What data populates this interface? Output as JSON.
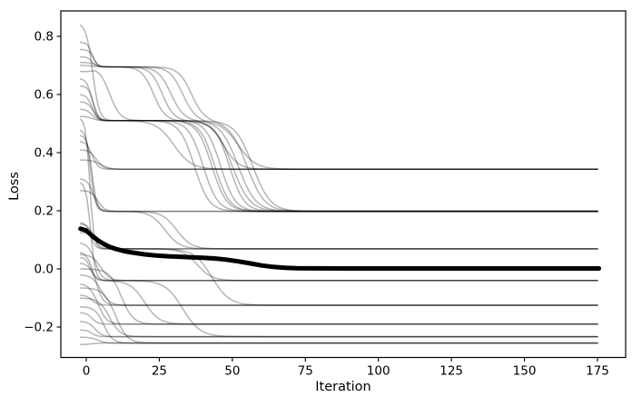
{
  "figure": {
    "background": "#ffffff"
  },
  "chart_data": {
    "type": "line",
    "title": "",
    "xlabel": "Iteration",
    "ylabel": "Loss",
    "xlim": [
      -8.7,
      184.6
    ],
    "ylim": [
      -0.305,
      0.8875
    ],
    "grid": false,
    "legend": null,
    "xticks": [
      0,
      25,
      50,
      75,
      100,
      125,
      150,
      175
    ],
    "xtick_labels": [
      "0",
      "25",
      "50",
      "75",
      "100",
      "125",
      "150",
      "175"
    ],
    "yticks": [
      -0.2,
      0.0,
      0.2,
      0.4,
      0.6,
      0.8
    ],
    "ytick_labels": [
      "−0.2",
      "0.0",
      "0.2",
      "0.4",
      "0.6",
      "0.8"
    ],
    "t_range": [
      -2,
      175.5
    ],
    "plateau_levels": [
      0.695,
      0.51,
      0.343,
      0.198,
      0.069,
      -0.04,
      -0.125,
      -0.19,
      -0.233,
      -0.255
    ],
    "gray_style": {
      "color": "rgba(0,0,0,0.29)",
      "width": 1.5
    },
    "mean_style": {
      "color": "#000000",
      "width": 5
    },
    "mean_curve": [
      [
        -2,
        0.138
      ],
      [
        0,
        0.132
      ],
      [
        2,
        0.114
      ],
      [
        4,
        0.098
      ],
      [
        6,
        0.086
      ],
      [
        8,
        0.076
      ],
      [
        10,
        0.069
      ],
      [
        13,
        0.061
      ],
      [
        16,
        0.056
      ],
      [
        20,
        0.05
      ],
      [
        24,
        0.046
      ],
      [
        28,
        0.0435
      ],
      [
        32,
        0.042
      ],
      [
        36,
        0.04
      ],
      [
        40,
        0.038
      ],
      [
        44,
        0.036
      ],
      [
        48,
        0.032
      ],
      [
        52,
        0.026
      ],
      [
        56,
        0.019
      ],
      [
        60,
        0.012
      ],
      [
        64,
        0.007
      ],
      [
        68,
        0.004
      ],
      [
        72,
        0.0025
      ],
      [
        78,
        0.0018
      ],
      [
        90,
        0.0015
      ],
      [
        120,
        0.0015
      ],
      [
        175.5,
        0.0015
      ]
    ],
    "gray_curves": [
      {
        "levels": [
          0.845,
          0.51,
          0.343
        ],
        "t": [
          2.2,
          30
        ],
        "w": [
          1.1,
          3
        ]
      },
      {
        "levels": [
          0.78,
          0.695,
          0.51,
          0.198
        ],
        "t": [
          2,
          23,
          43
        ],
        "w": [
          0.8,
          2,
          2.5
        ]
      },
      {
        "levels": [
          0.755,
          0.695,
          0.51,
          0.198
        ],
        "t": [
          2.5,
          26,
          46
        ],
        "w": [
          0.8,
          2,
          2.5
        ]
      },
      {
        "levels": [
          0.73,
          0.695,
          0.51,
          0.198
        ],
        "t": [
          2,
          29,
          49
        ],
        "w": [
          0.8,
          2.2,
          2.5
        ]
      },
      {
        "levels": [
          0.71,
          0.695,
          0.51,
          0.198
        ],
        "t": [
          3,
          33,
          52
        ],
        "w": [
          1,
          2.2,
          3
        ]
      },
      {
        "levels": [
          0.7,
          0.695,
          0.51,
          0.198
        ],
        "t": [
          2,
          36,
          55
        ],
        "w": [
          0.9,
          2.2,
          3
        ]
      },
      {
        "levels": [
          0.68,
          0.695,
          0.51,
          0.198
        ],
        "t": [
          2,
          8,
          40
        ],
        "w": [
          0.8,
          1.8,
          2.5
        ]
      },
      {
        "levels": [
          0.655,
          0.51,
          0.198
        ],
        "t": [
          2,
          37
        ],
        "w": [
          0.9,
          2.5
        ]
      },
      {
        "levels": [
          0.63,
          0.51,
          0.198
        ],
        "t": [
          2.5,
          50
        ],
        "w": [
          0.9,
          3
        ]
      },
      {
        "levels": [
          0.6,
          0.51,
          0.198
        ],
        "t": [
          2,
          44
        ],
        "w": [
          0.9,
          2.5
        ]
      },
      {
        "levels": [
          0.575,
          0.51,
          0.198
        ],
        "t": [
          2.5,
          57
        ],
        "w": [
          1,
          3
        ]
      },
      {
        "levels": [
          0.55,
          0.51,
          0.343
        ],
        "t": [
          2,
          47
        ],
        "w": [
          1,
          2.5
        ]
      },
      {
        "levels": [
          0.525,
          0.51,
          0.343
        ],
        "t": [
          2,
          52
        ],
        "w": [
          1,
          3
        ]
      },
      {
        "levels": [
          0.44,
          0.343
        ],
        "t": [
          2
        ],
        "w": [
          1
        ]
      },
      {
        "levels": [
          0.41,
          0.343
        ],
        "t": [
          3.5
        ],
        "w": [
          1.2
        ]
      },
      {
        "levels": [
          0.375,
          0.343
        ],
        "t": [
          5
        ],
        "w": [
          1.5
        ]
      },
      {
        "levels": [
          0.31,
          0.198
        ],
        "t": [
          2.5
        ],
        "w": [
          1
        ]
      },
      {
        "levels": [
          0.27,
          0.198
        ],
        "t": [
          4
        ],
        "w": [
          1.2
        ]
      },
      {
        "levels": [
          0.48,
          0.198,
          0.069
        ],
        "t": [
          1.5,
          27
        ],
        "w": [
          0.8,
          2.5
        ]
      },
      {
        "levels": [
          0.46,
          0.198,
          0.069
        ],
        "t": [
          2,
          31
        ],
        "w": [
          0.8,
          2.5
        ]
      },
      {
        "levels": [
          0.155,
          0.069
        ],
        "t": [
          2.5
        ],
        "w": [
          1
        ]
      },
      {
        "levels": [
          0.125,
          0.069
        ],
        "t": [
          4
        ],
        "w": [
          1.2
        ]
      },
      {
        "levels": [
          0.52,
          0.069,
          -0.04
        ],
        "t": [
          1.2,
          38
        ],
        "w": [
          0.7,
          2.5
        ]
      },
      {
        "levels": [
          0.09,
          -0.04
        ],
        "t": [
          3
        ],
        "w": [
          1.2
        ]
      },
      {
        "levels": [
          0.05,
          -0.04
        ],
        "t": [
          5
        ],
        "w": [
          1.5
        ]
      },
      {
        "levels": [
          0.3,
          -0.04
        ],
        "t": [
          1.5
        ],
        "w": [
          0.8
        ]
      },
      {
        "levels": [
          0.02,
          -0.04,
          -0.19
        ],
        "t": [
          2,
          20
        ],
        "w": [
          1,
          2.5
        ]
      },
      {
        "levels": [
          0.06,
          -0.125
        ],
        "t": [
          3
        ],
        "w": [
          1.3
        ]
      },
      {
        "levels": [
          -0.02,
          -0.125
        ],
        "t": [
          5
        ],
        "w": [
          1.5
        ]
      },
      {
        "levels": [
          0.16,
          0.069,
          -0.125
        ],
        "t": [
          1.5,
          43
        ],
        "w": [
          0.8,
          3
        ]
      },
      {
        "levels": [
          -0.09,
          -0.125
        ],
        "t": [
          2
        ],
        "w": [
          1
        ]
      },
      {
        "levels": [
          -0.05,
          -0.19
        ],
        "t": [
          4
        ],
        "w": [
          1.5
        ]
      },
      {
        "levels": [
          -0.15,
          -0.19
        ],
        "t": [
          2
        ],
        "w": [
          1
        ]
      },
      {
        "levels": [
          0.0,
          -0.19
        ],
        "t": [
          12
        ],
        "w": [
          2
        ]
      },
      {
        "levels": [
          -0.18,
          -0.233
        ],
        "t": [
          3
        ],
        "w": [
          1.2
        ]
      },
      {
        "levels": [
          -0.1,
          -0.233
        ],
        "t": [
          8
        ],
        "w": [
          1.8
        ]
      },
      {
        "levels": [
          0.04,
          -0.04,
          -0.233
        ],
        "t": [
          1.5,
          33
        ],
        "w": [
          0.8,
          3
        ]
      },
      {
        "levels": [
          -0.21,
          -0.233
        ],
        "t": [
          2
        ],
        "w": [
          0.9
        ]
      },
      {
        "levels": [
          -0.26,
          -0.255
        ],
        "t": [
          2
        ],
        "w": [
          1
        ]
      },
      {
        "levels": [
          -0.235,
          -0.255
        ],
        "t": [
          4
        ],
        "w": [
          1.3
        ]
      },
      {
        "levels": [
          -0.13,
          -0.255
        ],
        "t": [
          6
        ],
        "w": [
          1.5
        ]
      },
      {
        "levels": [
          -0.065,
          -0.255
        ],
        "t": [
          10
        ],
        "w": [
          2
        ]
      }
    ]
  }
}
